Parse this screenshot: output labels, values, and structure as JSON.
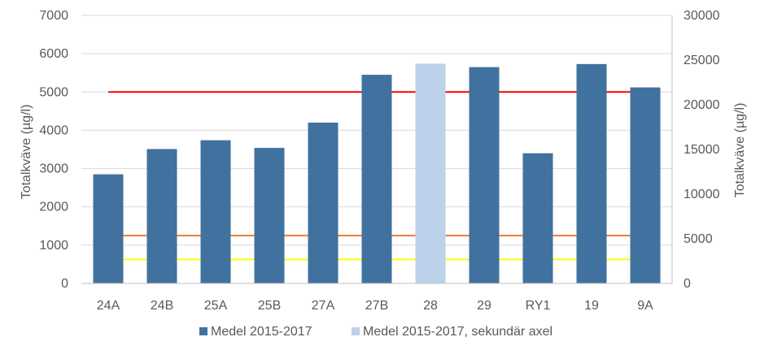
{
  "chart_data": {
    "type": "bar",
    "title": "",
    "categories": [
      "24A",
      "24B",
      "25A",
      "25B",
      "27A",
      "27B",
      "28",
      "29",
      "RY1",
      "19",
      "9A"
    ],
    "series": [
      {
        "name": "Medel 2015-2017",
        "axis": "primary",
        "color": "#41729f",
        "values": [
          2850,
          3510,
          3740,
          3540,
          4200,
          5450,
          null,
          5650,
          3400,
          5730,
          5120
        ]
      },
      {
        "name": "Medel 2015-2017, sekundär axel",
        "axis": "secondary",
        "color": "#bcd1ea",
        "values": [
          null,
          null,
          null,
          null,
          null,
          null,
          24600,
          null,
          null,
          null,
          null
        ]
      }
    ],
    "reference_lines": [
      {
        "value": 5000,
        "color": "#ff0000"
      },
      {
        "value": 1250,
        "color": "#ed7d31"
      },
      {
        "value": 625,
        "color": "#ffff00"
      }
    ],
    "ylabel": "Totalkväve (µg/l)",
    "ylim": [
      0,
      7000
    ],
    "yticks": [
      0,
      1000,
      2000,
      3000,
      4000,
      5000,
      6000,
      7000
    ],
    "y2label": "Totalkväve (µg/l)",
    "y2lim": [
      0,
      30000
    ],
    "y2ticks": [
      0,
      5000,
      10000,
      15000,
      20000,
      25000,
      30000
    ],
    "grid": true,
    "legend_position": "bottom"
  }
}
